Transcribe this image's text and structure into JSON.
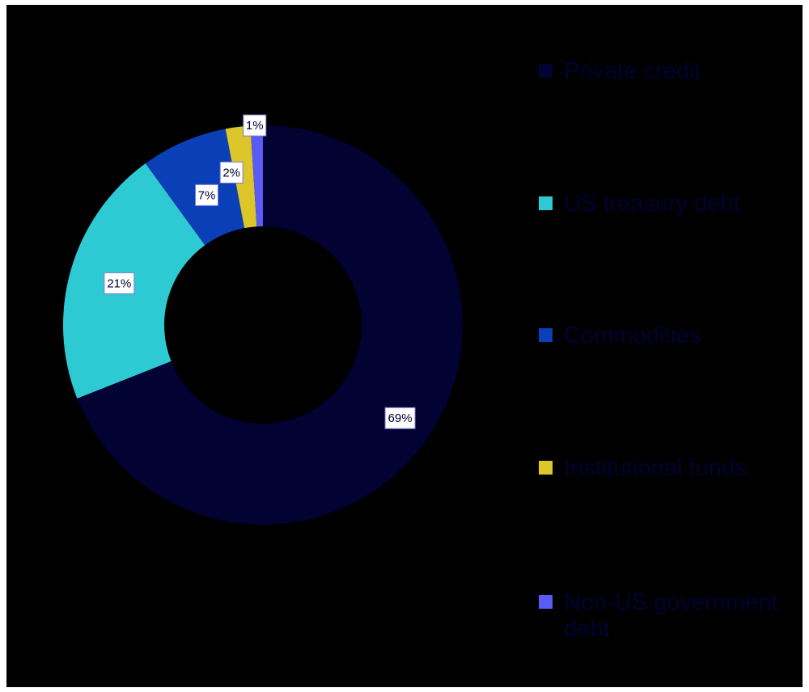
{
  "chart_data": {
    "type": "pie",
    "donut": true,
    "categories": [
      "Private credit",
      "US treasury debt",
      "Commodities",
      "Institutional funds",
      "Non-US government debt"
    ],
    "values": [
      69,
      21,
      7,
      2,
      1
    ],
    "data_labels": [
      "69%",
      "21%",
      "7%",
      "2%",
      "1%"
    ],
    "colors": [
      "#020233",
      "#2ecad3",
      "#0a3fb8",
      "#dcc62a",
      "#5a5af5"
    ],
    "legend_placement": "right",
    "background": "#000000"
  }
}
